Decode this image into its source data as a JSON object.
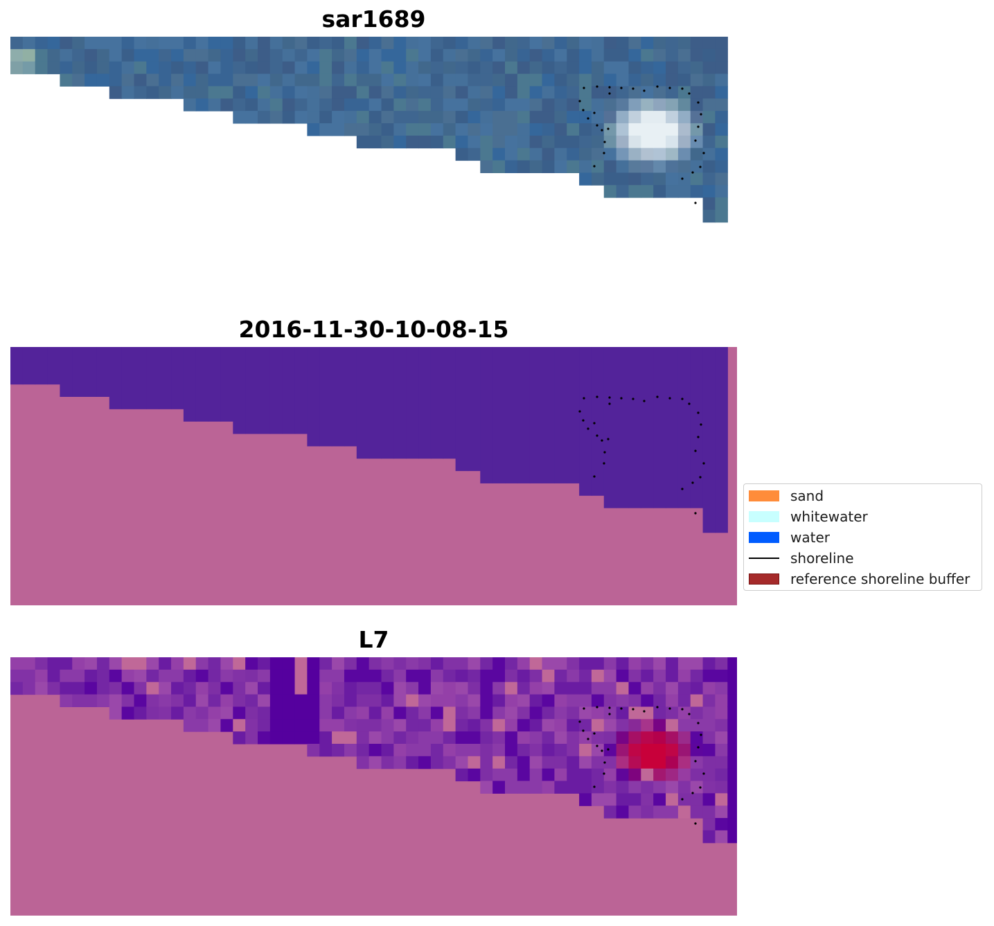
{
  "panels": {
    "rgb": {
      "title": "sar1689"
    },
    "classification": {
      "title": "2016-11-30-10-08-15"
    },
    "index": {
      "title": "L7"
    }
  },
  "legend": {
    "items": [
      {
        "label": "sand",
        "kind": "patch",
        "color": "#ff8c3a"
      },
      {
        "label": "whitewater",
        "kind": "patch",
        "color": "#c8ffff"
      },
      {
        "label": "water",
        "kind": "patch",
        "color": "#005cff"
      },
      {
        "label": "shoreline",
        "kind": "line",
        "color": "#000000"
      },
      {
        "label": "reference shoreline buffer",
        "kind": "patch",
        "color": "#a52a2a",
        "edge": "#7a1515"
      }
    ]
  },
  "colors": {
    "background_land": "#bb6496",
    "water_class": "#53239a",
    "rgb_water": "#3c5f86",
    "index_dark": "#55009e",
    "index_hot": "#c8003a"
  }
}
